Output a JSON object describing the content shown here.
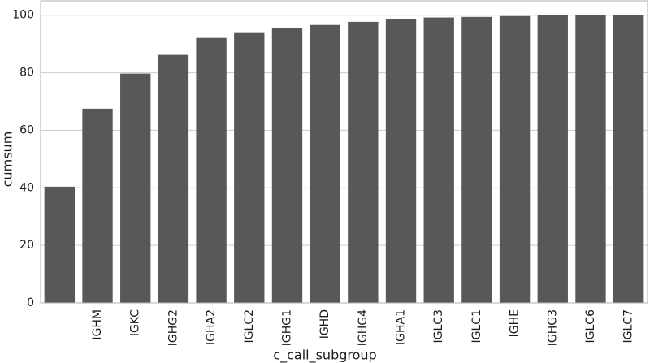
{
  "chart_data": {
    "type": "bar",
    "x_label": "c_call_subgroup",
    "y_label": "cumsum",
    "categories": [
      null,
      "IGHM",
      "IGKC",
      "IGHG2",
      "IGHA2",
      "IGLC2",
      "IGHG1",
      "IGHD",
      "IGHG4",
      "IGHA1",
      "IGLC3",
      "IGLC1",
      "IGHE",
      "IGHG3",
      "IGLC6",
      "IGLC7"
    ],
    "values": [
      40.4,
      67.5,
      79.7,
      86.2,
      92.1,
      93.8,
      95.5,
      96.6,
      97.7,
      98.6,
      99.2,
      99.4,
      99.7,
      100,
      100,
      100
    ],
    "color": "#585858",
    "ylim": [
      0,
      105
    ],
    "yticks": [
      0,
      20,
      40,
      60,
      80,
      100
    ],
    "grid": true
  }
}
